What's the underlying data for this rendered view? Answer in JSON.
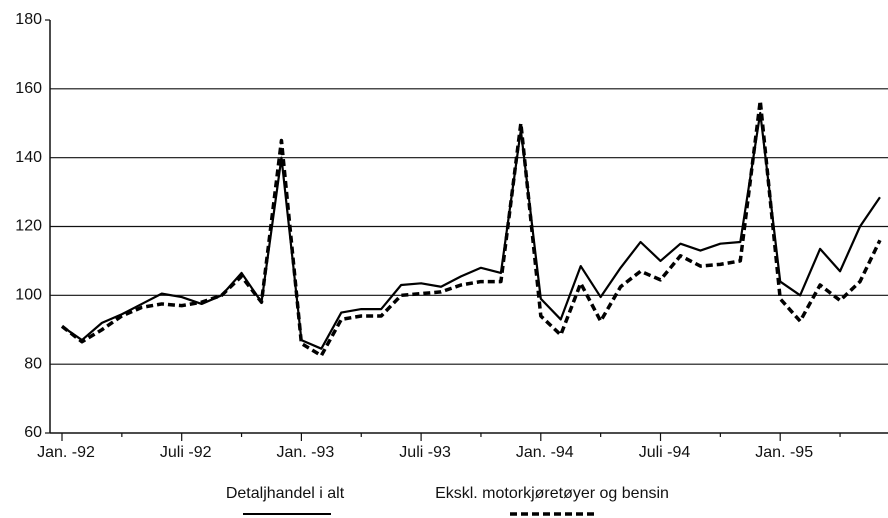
{
  "chart_data": {
    "type": "line",
    "categories": [
      "Jan. -92",
      null,
      null,
      null,
      null,
      null,
      "Juli -92",
      null,
      null,
      null,
      null,
      null,
      "Jan. -93",
      null,
      null,
      null,
      null,
      null,
      "Juli -93",
      null,
      null,
      null,
      null,
      null,
      "Jan. -94",
      null,
      null,
      null,
      null,
      null,
      "Juli -94",
      null,
      null,
      null,
      null,
      null,
      "Jan. -95",
      null,
      null,
      null,
      null,
      null
    ],
    "series": [
      {
        "name": "Detaljhandel i alt",
        "color": "#000000",
        "dash": false,
        "values": [
          91,
          87,
          92,
          94.5,
          97.5,
          100.5,
          99.5,
          97.5,
          100,
          106.5,
          98,
          140,
          87,
          84.5,
          95,
          96,
          96,
          103,
          103.5,
          102.5,
          105.5,
          108,
          106.5,
          148,
          99,
          93,
          108.5,
          99.5,
          108,
          115.5,
          110,
          115,
          113,
          115,
          115.5,
          153,
          104,
          100,
          113.5,
          107,
          120,
          128.5
        ]
      },
      {
        "name": "Ekskl. motorkjøretøyer og bensin",
        "color": "#000000",
        "dash": true,
        "values": [
          91,
          86.5,
          90,
          94,
          96.5,
          97.5,
          97,
          98,
          100,
          105.5,
          98,
          145,
          86,
          82.5,
          93,
          94,
          94,
          100,
          100.5,
          101,
          103,
          104,
          104,
          150,
          94,
          88.5,
          103.5,
          92.5,
          102.5,
          107,
          104.5,
          111.5,
          108.5,
          109,
          110,
          156.5,
          99,
          92.5,
          103,
          98.5,
          104,
          116
        ]
      }
    ],
    "ylim": [
      60,
      180
    ],
    "yticks": [
      60,
      80,
      100,
      120,
      140,
      160,
      180
    ],
    "grid": true,
    "legend": "bottom"
  }
}
